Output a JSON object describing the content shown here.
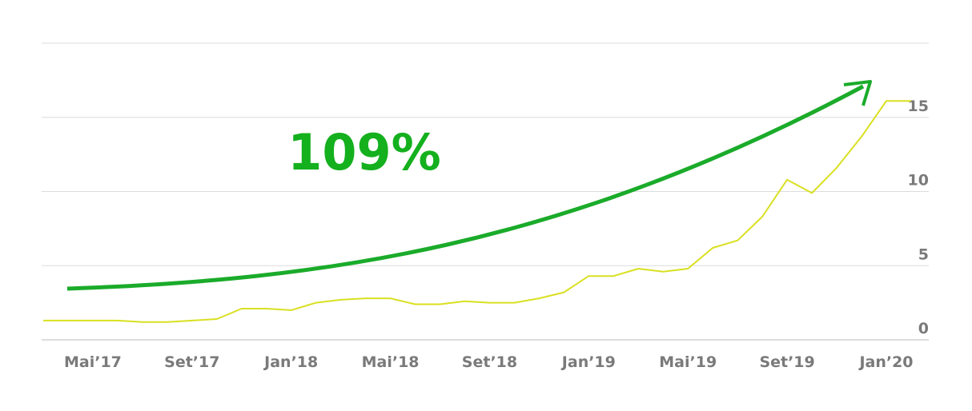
{
  "chart_data": {
    "type": "line",
    "annotation": "109%",
    "categories": [
      null,
      null,
      "Mai’17",
      null,
      null,
      null,
      "Set’17",
      null,
      null,
      null,
      "Jan’18",
      null,
      null,
      null,
      "Mai’18",
      null,
      null,
      null,
      "Set’18",
      null,
      null,
      null,
      "Jan’19",
      null,
      null,
      null,
      "Mai’19",
      null,
      null,
      null,
      "Set’19",
      null,
      null,
      null,
      "Jan’20",
      null
    ],
    "values": [
      1.3,
      1.3,
      1.3,
      1.3,
      1.2,
      1.2,
      1.3,
      1.4,
      2.1,
      2.1,
      2.0,
      2.5,
      2.7,
      2.8,
      2.8,
      2.4,
      2.4,
      2.6,
      2.5,
      2.5,
      2.8,
      3.2,
      4.3,
      4.3,
      4.8,
      4.6,
      4.8,
      6.2,
      6.7,
      8.3,
      10.8,
      9.9,
      11.6,
      13.7,
      16.1,
      16.1
    ],
    "color": "#d9e021",
    "ylim": [
      0,
      20
    ],
    "yticks": [
      0,
      5,
      10,
      15
    ],
    "grid": true
  }
}
